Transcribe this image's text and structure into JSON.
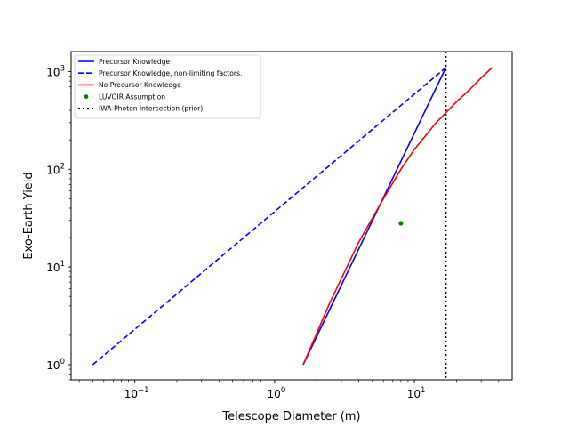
{
  "chart_data": {
    "type": "line",
    "xlabel": "Telescope Diameter (m)",
    "ylabel": "Exo-Earth Yield",
    "xscale": "log",
    "yscale": "log",
    "xlim": [
      0.035,
      50
    ],
    "ylim": [
      0.7,
      1600
    ],
    "grid": false,
    "legend_position": "top-left",
    "x_ticks": [
      {
        "value": 0.1,
        "base": "10",
        "exp": "−1"
      },
      {
        "value": 1,
        "base": "10",
        "exp": "0"
      },
      {
        "value": 10,
        "base": "10",
        "exp": "1"
      }
    ],
    "y_ticks": [
      {
        "value": 1,
        "base": "10",
        "exp": "0"
      },
      {
        "value": 10,
        "base": "10",
        "exp": "1"
      },
      {
        "value": 100,
        "base": "10",
        "exp": "2"
      },
      {
        "value": 1000,
        "base": "10",
        "exp": "3"
      }
    ],
    "series": [
      {
        "name": "Precursor Knowledge",
        "style": "solid",
        "color": "#0000ff",
        "x": [
          1.6,
          16.8
        ],
        "y": [
          1,
          1100
        ]
      },
      {
        "name": "Precursor Knowledge, non-limiting factors.",
        "style": "dashed",
        "color": "#0000ff",
        "x": [
          0.05,
          16.8
        ],
        "y": [
          1,
          1100
        ]
      },
      {
        "name": "No Precursor Knowledge",
        "style": "solid",
        "color": "#ff0000",
        "x": [
          1.6,
          2.5,
          4,
          6,
          8,
          10,
          12,
          14,
          16.8,
          20,
          25,
          30,
          36
        ],
        "y": [
          1,
          4.4,
          18,
          50,
          100,
          160,
          220,
          290,
          380,
          490,
          660,
          860,
          1100
        ]
      },
      {
        "name": "LUVOIR Assumption",
        "style": "point",
        "color": "#008000",
        "x": [
          8
        ],
        "y": [
          28
        ]
      },
      {
        "name": "IWA-Photon intersection (prior)",
        "style": "dotted-vertical",
        "color": "#000000",
        "x": [
          16.8
        ]
      }
    ]
  }
}
